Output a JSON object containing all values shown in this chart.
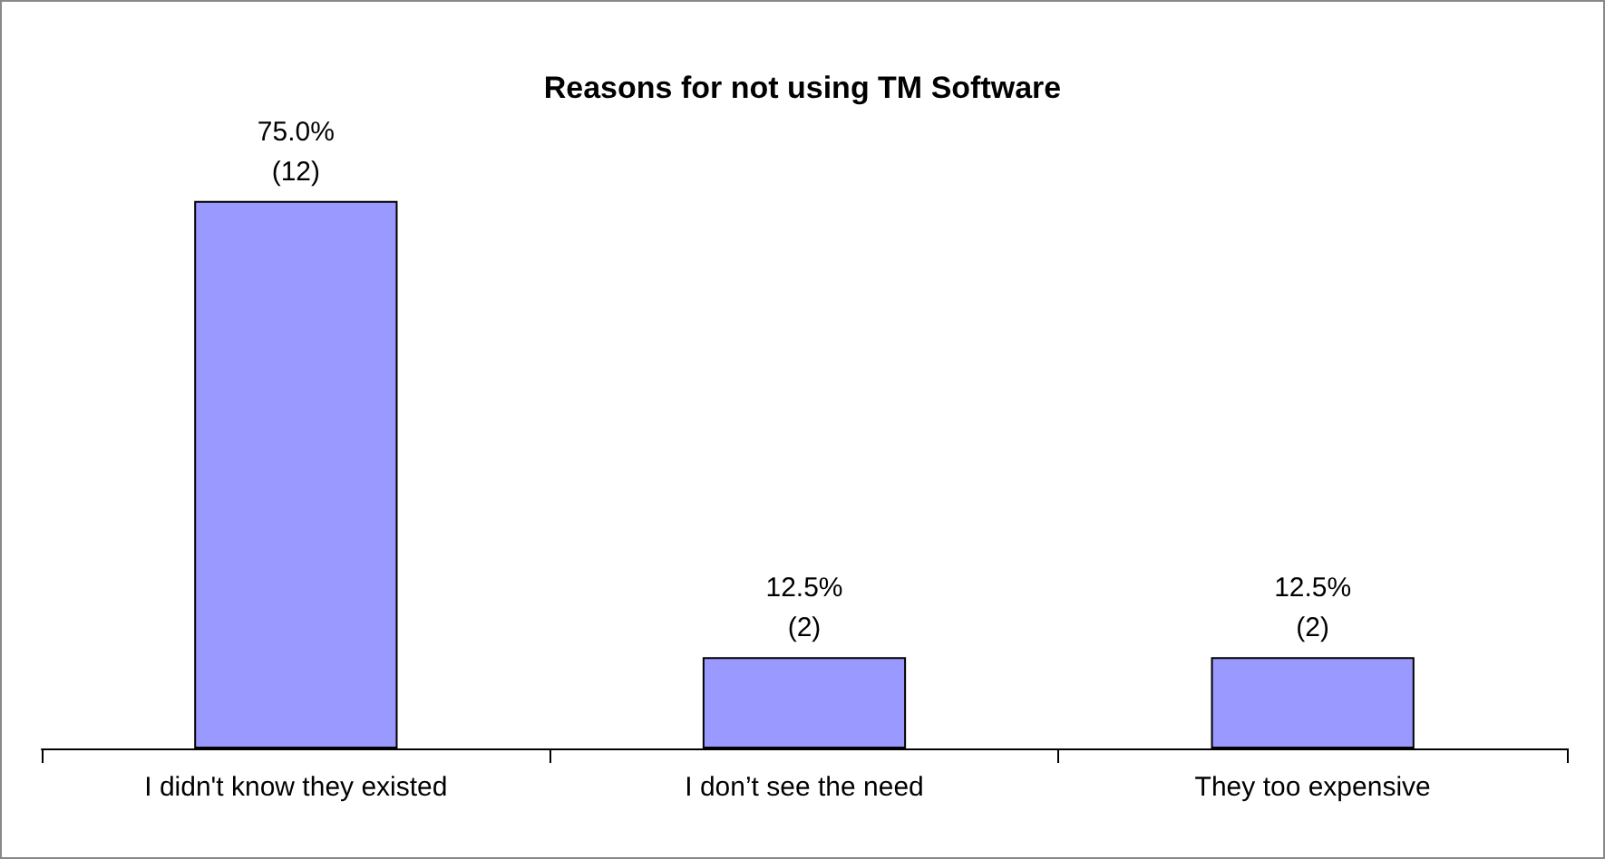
{
  "chart_data": {
    "type": "bar",
    "title": "Reasons for not using TM Software",
    "categories": [
      "I didn't know they existed",
      "I don’t see the need",
      "They too expensive"
    ],
    "values": [
      75.0,
      12.5,
      12.5
    ],
    "value_labels": [
      "75.0%\n(12)",
      "12.5%\n(2)",
      "12.5%\n(2)"
    ],
    "color": "#9999ff"
  }
}
